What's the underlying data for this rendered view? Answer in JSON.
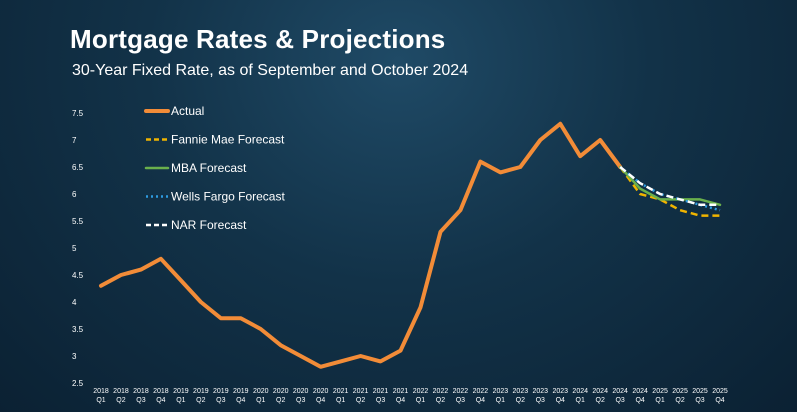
{
  "title": "Mortgage Rates & Projections",
  "subtitle": "30-Year Fixed Rate, as of September and October 2024",
  "chart_data": {
    "type": "line",
    "categories": [
      "2018 Q1",
      "2018 Q2",
      "2018 Q3",
      "2018 Q4",
      "2019 Q1",
      "2019 Q2",
      "2019 Q3",
      "2019 Q4",
      "2020 Q1",
      "2020 Q2",
      "2020 Q3",
      "2020 Q4",
      "2021 Q1",
      "2021 Q2",
      "2021 Q3",
      "2021 Q4",
      "2022 Q1",
      "2022 Q2",
      "2022 Q3",
      "2022 Q4",
      "2023 Q1",
      "2023 Q2",
      "2023 Q3",
      "2023 Q4",
      "2024 Q1",
      "2024 Q2",
      "2024 Q3",
      "2024 Q4",
      "2025 Q1",
      "2025 Q2",
      "2025 Q3",
      "2025 Q4"
    ],
    "x_tick_labels": [
      [
        "2018",
        "Q1"
      ],
      [
        "2018",
        "Q2"
      ],
      [
        "2018",
        "Q3"
      ],
      [
        "2018",
        "Q4"
      ],
      [
        "2019",
        "Q1"
      ],
      [
        "2019",
        "Q2"
      ],
      [
        "2019",
        "Q3"
      ],
      [
        "2019",
        "Q4"
      ],
      [
        "2020",
        "Q1"
      ],
      [
        "2020",
        "Q2"
      ],
      [
        "2020",
        "Q3"
      ],
      [
        "2020",
        "Q4"
      ],
      [
        "2021",
        "Q1"
      ],
      [
        "2021",
        "Q2"
      ],
      [
        "2021",
        "Q3"
      ],
      [
        "2021",
        "Q4"
      ],
      [
        "2022",
        "Q1"
      ],
      [
        "2022",
        "Q2"
      ],
      [
        "2022",
        "Q3"
      ],
      [
        "2022",
        "Q4"
      ],
      [
        "2023",
        "Q1"
      ],
      [
        "2023",
        "Q2"
      ],
      [
        "2023",
        "Q3"
      ],
      [
        "2023",
        "Q4"
      ],
      [
        "2024",
        "Q1"
      ],
      [
        "2024",
        "Q2"
      ],
      [
        "2024",
        "Q3"
      ],
      [
        "2024",
        "Q4"
      ],
      [
        "2025",
        "Q1"
      ],
      [
        "2025",
        "Q2"
      ],
      [
        "2025",
        "Q3"
      ],
      [
        "2025",
        "Q4"
      ]
    ],
    "y_ticks": [
      "2.5",
      "3",
      "3.5",
      "4",
      "4.5",
      "5",
      "5.5",
      "6",
      "6.5",
      "7",
      "7.5"
    ],
    "ylim": [
      2.5,
      7.5
    ],
    "legend_position": "top-left",
    "grid": false,
    "series": [
      {
        "name": "Actual",
        "color": "#f28c38",
        "style": "solid",
        "values": [
          4.3,
          4.5,
          4.6,
          4.8,
          4.4,
          4.0,
          3.7,
          3.7,
          3.5,
          3.2,
          3.0,
          2.8,
          2.9,
          3.0,
          2.9,
          3.1,
          3.9,
          5.3,
          5.7,
          6.6,
          6.4,
          6.5,
          7.0,
          7.3,
          6.7,
          7.0,
          6.5,
          null,
          null,
          null,
          null,
          null
        ]
      },
      {
        "name": "Fannie Mae Forecast",
        "color": "#f0b400",
        "style": "dashed",
        "values": [
          null,
          null,
          null,
          null,
          null,
          null,
          null,
          null,
          null,
          null,
          null,
          null,
          null,
          null,
          null,
          null,
          null,
          null,
          null,
          null,
          null,
          null,
          null,
          null,
          null,
          null,
          6.5,
          6.0,
          5.9,
          5.7,
          5.6,
          5.6
        ]
      },
      {
        "name": "MBA Forecast",
        "color": "#6ab04c",
        "style": "solid",
        "values": [
          null,
          null,
          null,
          null,
          null,
          null,
          null,
          null,
          null,
          null,
          null,
          null,
          null,
          null,
          null,
          null,
          null,
          null,
          null,
          null,
          null,
          null,
          null,
          null,
          null,
          null,
          6.5,
          6.1,
          5.9,
          5.9,
          5.9,
          5.8
        ]
      },
      {
        "name": "Wells Fargo Forecast",
        "color": "#2e9be0",
        "style": "dotted",
        "values": [
          null,
          null,
          null,
          null,
          null,
          null,
          null,
          null,
          null,
          null,
          null,
          null,
          null,
          null,
          null,
          null,
          null,
          null,
          null,
          null,
          null,
          null,
          null,
          null,
          null,
          null,
          6.5,
          6.2,
          6.0,
          5.9,
          5.8,
          5.7
        ]
      },
      {
        "name": "NAR Forecast",
        "color": "#ffffff",
        "style": "dashed",
        "values": [
          null,
          null,
          null,
          null,
          null,
          null,
          null,
          null,
          null,
          null,
          null,
          null,
          null,
          null,
          null,
          null,
          null,
          null,
          null,
          null,
          null,
          null,
          null,
          null,
          null,
          null,
          6.5,
          6.2,
          6.0,
          5.9,
          5.8,
          5.8
        ]
      }
    ]
  }
}
